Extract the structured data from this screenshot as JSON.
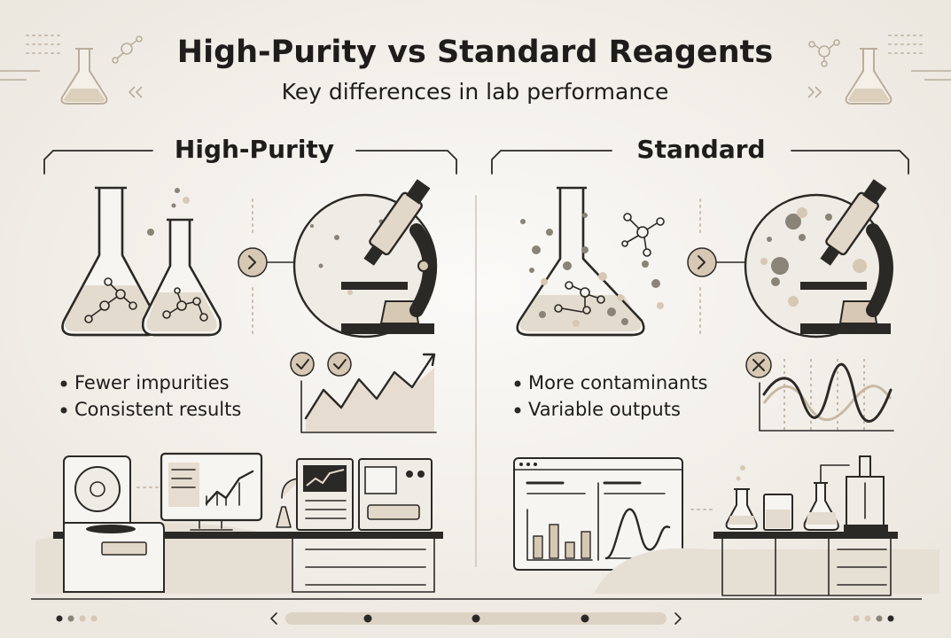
{
  "header": {
    "title": "High-Purity vs Standard Reagents",
    "subtitle": "Key differences in lab performance"
  },
  "panels": [
    {
      "heading": "High-Purity",
      "bullets": [
        "Fewer impurities",
        "Consistent results"
      ]
    },
    {
      "heading": "Standard",
      "bullets": [
        "More contaminants",
        "Variable outputs"
      ]
    }
  ]
}
